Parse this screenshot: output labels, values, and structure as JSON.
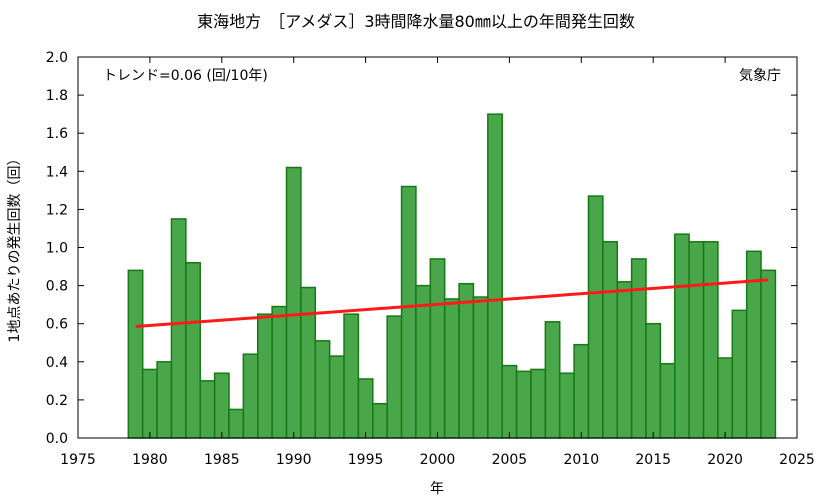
{
  "chart_data": {
    "type": "bar",
    "title": "東海地方　［アメダス］3時間降水量80㎜以上の年間発生回数",
    "xlabel": "年",
    "ylabel": "1地点あたりの発生回数（回）",
    "trend_text": "トレンド=0.06 (回/10年)",
    "source_text": "気象庁",
    "xlim": [
      1975,
      2025
    ],
    "ylim": [
      0,
      2.0
    ],
    "xticks": [
      1975,
      1980,
      1985,
      1990,
      1995,
      2000,
      2005,
      2010,
      2015,
      2020,
      2025
    ],
    "yticks": [
      0.0,
      0.2,
      0.4,
      0.6,
      0.8,
      1.0,
      1.2,
      1.4,
      1.6,
      1.8,
      2.0
    ],
    "bar_color": "#4aa64a",
    "bar_edge_color": "#157a15",
    "trend_color": "#ff1a1a",
    "grid": false,
    "years": [
      1979,
      1980,
      1981,
      1982,
      1983,
      1984,
      1985,
      1986,
      1987,
      1988,
      1989,
      1990,
      1991,
      1992,
      1993,
      1994,
      1995,
      1996,
      1997,
      1998,
      1999,
      2000,
      2001,
      2002,
      2003,
      2004,
      2005,
      2006,
      2007,
      2008,
      2009,
      2010,
      2011,
      2012,
      2013,
      2014,
      2015,
      2016,
      2017,
      2018,
      2019,
      2020,
      2021,
      2022,
      2023
    ],
    "values": [
      0.88,
      0.36,
      0.4,
      1.15,
      0.92,
      0.3,
      0.34,
      0.15,
      0.44,
      0.65,
      0.69,
      1.42,
      0.79,
      0.51,
      0.43,
      0.65,
      0.31,
      0.18,
      0.64,
      1.32,
      0.8,
      0.94,
      0.73,
      0.81,
      0.74,
      1.7,
      0.38,
      0.35,
      0.36,
      0.61,
      0.34,
      0.49,
      1.27,
      1.03,
      0.82,
      0.94,
      0.6,
      0.39,
      1.07,
      1.03,
      1.03,
      0.42,
      0.67,
      0.98,
      0.88
    ],
    "trend": {
      "x": [
        1979,
        2023
      ],
      "y": [
        0.585,
        0.83
      ]
    }
  }
}
